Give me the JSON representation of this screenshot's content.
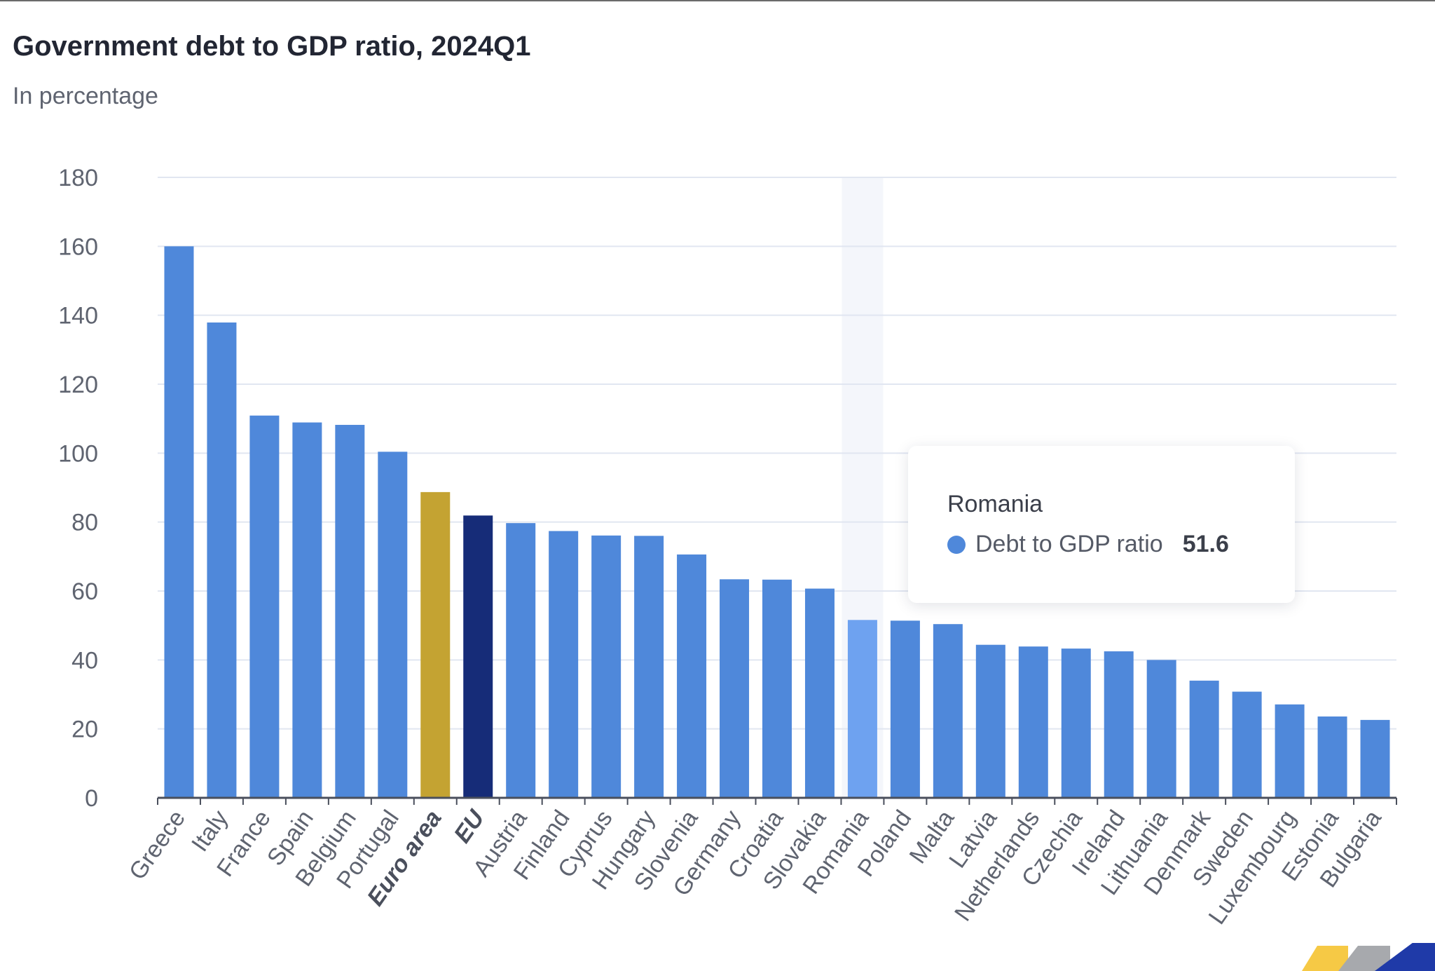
{
  "header": {
    "title": "Government debt to GDP ratio, 2024Q1",
    "subtitle": "In percentage"
  },
  "colors": {
    "bar": "#4f88da",
    "euro_area": "#c4a332",
    "eu": "#162c78",
    "hovered": "#6ea2f0",
    "grid": "#e1e6f1",
    "axis": "#5f6470",
    "hover_band": "#f4f6fb"
  },
  "chart_data": {
    "type": "bar",
    "categories": [
      "Greece",
      "Italy",
      "France",
      "Spain",
      "Belgium",
      "Portugal",
      "Euro area",
      "EU",
      "Austria",
      "Finland",
      "Cyprus",
      "Hungary",
      "Slovenia",
      "Germany",
      "Croatia",
      "Slovakia",
      "Romania",
      "Poland",
      "Malta",
      "Latvia",
      "Netherlands",
      "Czechia",
      "Ireland",
      "Lithuania",
      "Denmark",
      "Sweden",
      "Luxembourg",
      "Estonia",
      "Bulgaria"
    ],
    "series": [
      {
        "name": "Debt to GDP ratio",
        "values": [
          160.0,
          137.9,
          110.9,
          108.9,
          108.2,
          100.4,
          88.7,
          81.9,
          79.7,
          77.4,
          76.1,
          76.0,
          70.6,
          63.4,
          63.3,
          60.7,
          51.6,
          51.4,
          50.4,
          44.4,
          43.9,
          43.3,
          42.5,
          40.0,
          34.0,
          30.8,
          27.1,
          23.6,
          22.6
        ]
      }
    ],
    "highlight_categories": [
      "Euro area",
      "EU"
    ],
    "ylim": [
      0,
      180
    ],
    "yticks": [
      0,
      20,
      40,
      60,
      80,
      100,
      120,
      140,
      160,
      180
    ],
    "grid": true,
    "legend": "none"
  },
  "tooltip": {
    "category": "Romania",
    "series_name": "Debt to GDP ratio",
    "value": "51.6"
  }
}
